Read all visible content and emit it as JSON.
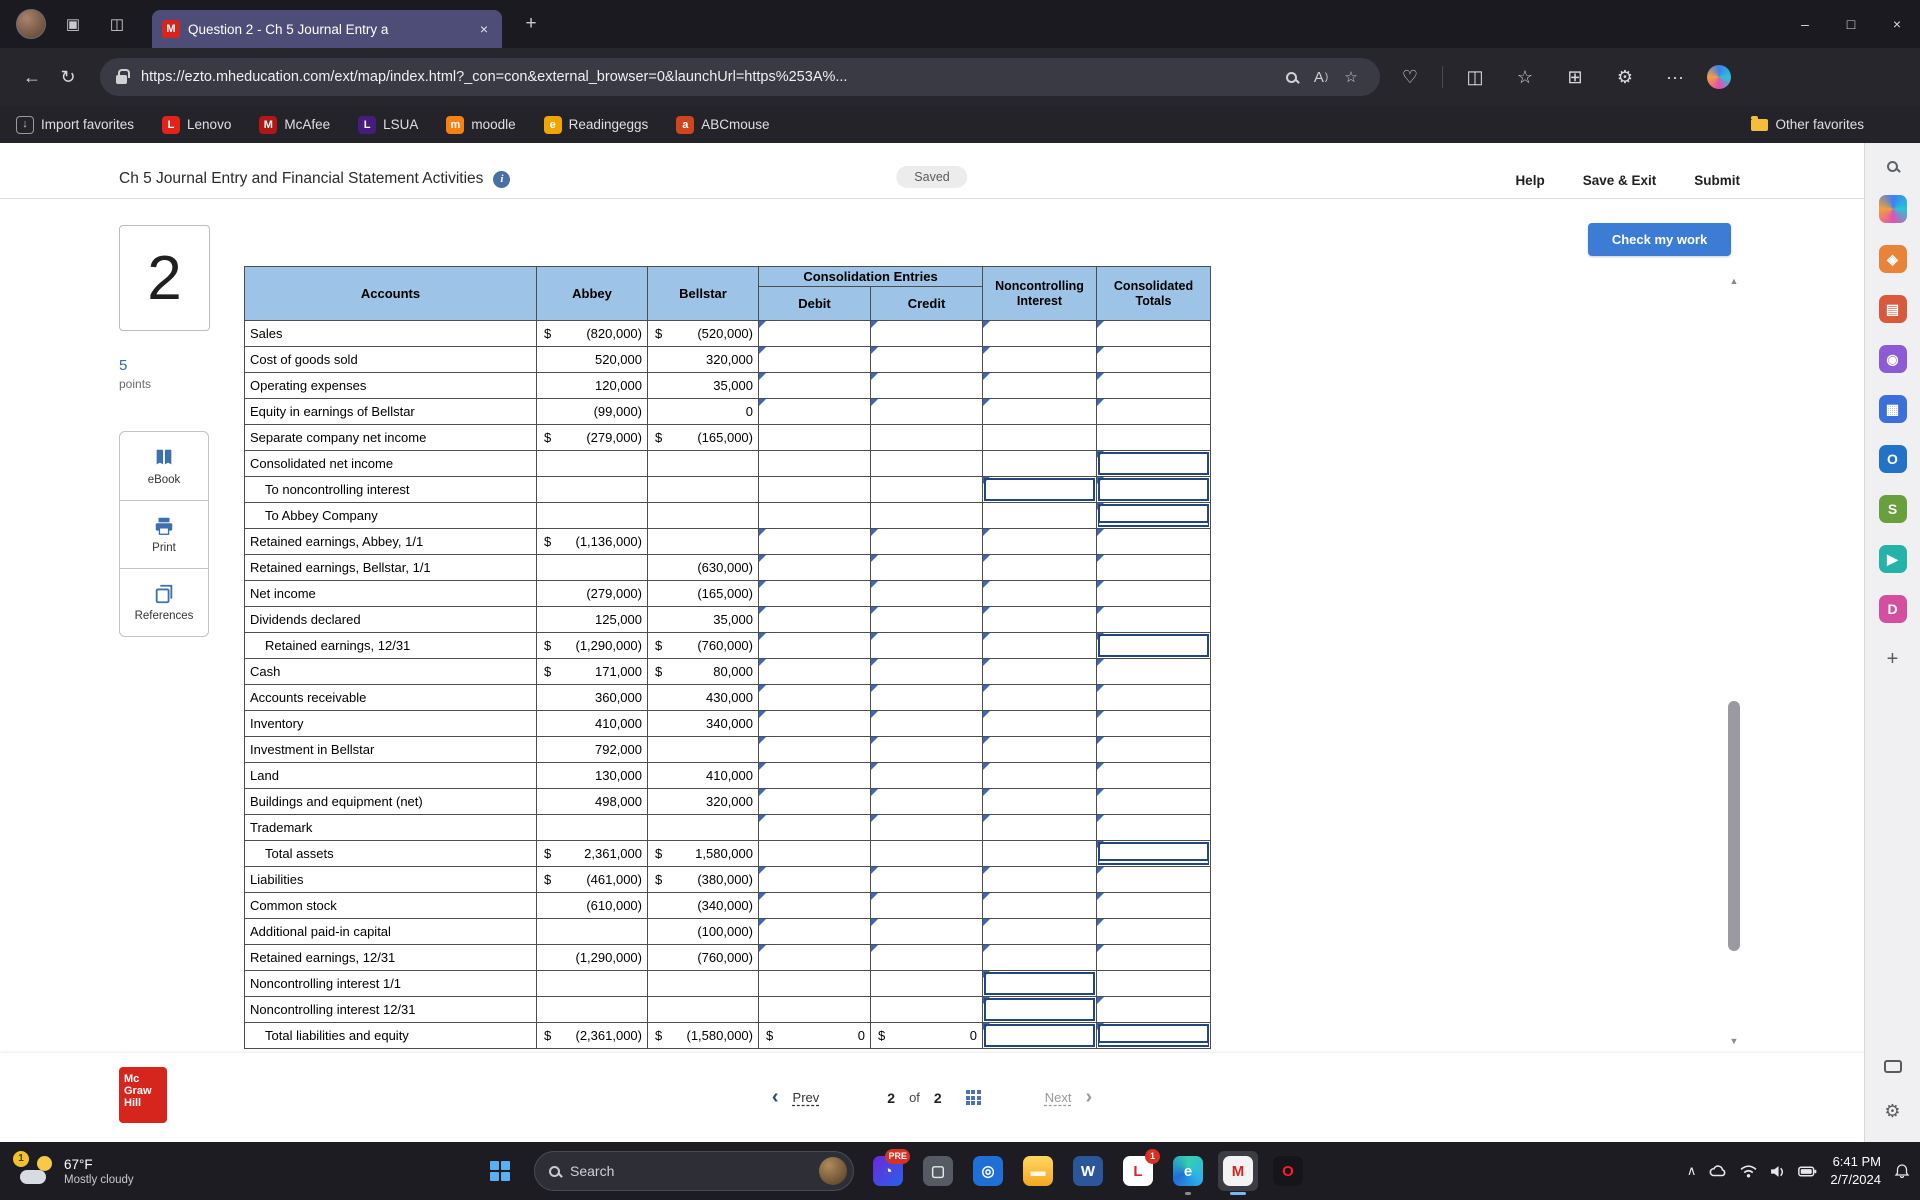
{
  "colors": {
    "accent_blue": "#3c7cd4",
    "table_header_blue": "#9dc3e6",
    "input_marker_blue": "#3f67b5",
    "boxed_cell_blue": "#24467e",
    "mcgraw_red": "#d6251c",
    "tab_purple": "#4d4d78",
    "chrome_dark": "#1a1a20",
    "chrome_mid": "#26262c",
    "taskbar_dark": "#1c1c22"
  },
  "icons": {
    "back": "←",
    "refresh": "↻",
    "more": "···",
    "star_url": "☆",
    "split": "◫",
    "favorites_star": "☆",
    "collections": "⊞",
    "essentials": "♡",
    "extensions": "⚙",
    "read_aloud": "A",
    "new_tab": "+",
    "minimize": "–",
    "maximize": "□",
    "close": "×",
    "tab_close": "×",
    "scroll_up": "▲",
    "scroll_down": "▼",
    "prev_chevron": "‹",
    "next_chevron": "›",
    "plus": "+",
    "gear": "⚙",
    "tray_chevron": "∧",
    "workspaces": "▣",
    "tab_actions": "◫"
  },
  "browser": {
    "tab_title": "Question 2 - Ch 5 Journal Entry a",
    "tab_favicon": "M",
    "url": "https://ezto.mheducation.com/ext/map/index.html?_con=con&external_browser=0&launchUrl=https%253A%...",
    "favorites": [
      {
        "id": "import-favorites",
        "label": "Import favorites",
        "letter": "↓",
        "color": "",
        "outline": true
      },
      {
        "id": "lenovo",
        "label": "Lenovo",
        "letter": "L",
        "color": "#e2231a"
      },
      {
        "id": "mcafee",
        "label": "McAfee",
        "letter": "M",
        "color": "#b01818"
      },
      {
        "id": "lsua",
        "label": "LSUA",
        "letter": "L",
        "color": "#461d7c"
      },
      {
        "id": "moodle",
        "label": "moodle",
        "letter": "m",
        "color": "#f98012"
      },
      {
        "id": "readingeggs",
        "label": "Readingeggs",
        "letter": "e",
        "color": "#f0a500"
      },
      {
        "id": "abcmouse",
        "label": "ABCmouse",
        "letter": "a",
        "color": "#cf4520"
      }
    ],
    "other_favorites": "Other favorites"
  },
  "header": {
    "title": "Ch 5 Journal Entry and Financial Statement Activities",
    "info": "i",
    "saved": "Saved",
    "help": "Help",
    "save_exit": "Save & Exit",
    "submit": "Submit"
  },
  "question": {
    "number": "2",
    "points_value": "5",
    "points_label": "points",
    "check_my_work": "Check my work",
    "tools": [
      {
        "label": "eBook",
        "icon": "book"
      },
      {
        "label": "Print",
        "icon": "printer"
      },
      {
        "label": "References",
        "icon": "copy"
      }
    ]
  },
  "worksheet": {
    "consolidation_entries": "Consolidation Entries",
    "headers": {
      "accounts": "Accounts",
      "abbey": "Abbey",
      "bellstar": "Bellstar",
      "debit": "Debit",
      "credit": "Credit",
      "noncontrolling": "Noncontrolling Interest",
      "consolidated": "Consolidated Totals"
    },
    "rows": [
      {
        "label": "Sales",
        "a_s": "$",
        "a_v": "(820,000)",
        "b_s": "$",
        "b_v": "(520,000)",
        "d": "i",
        "c": "i",
        "n": "i",
        "t": "i"
      },
      {
        "label": "Cost of goods sold",
        "a_v": "520,000",
        "b_v": "320,000",
        "d": "i",
        "c": "i",
        "n": "i",
        "t": "i"
      },
      {
        "label": "Operating expenses",
        "a_v": "120,000",
        "b_v": "35,000",
        "d": "i",
        "c": "i",
        "n": "i",
        "t": "i"
      },
      {
        "label": "Equity in earnings of Bellstar",
        "a_v": "(99,000)",
        "b_v": "0",
        "d": "i",
        "c": "i",
        "n": "i",
        "t": "i"
      },
      {
        "label": "Separate company net income",
        "a_s": "$",
        "a_v": "(279,000)",
        "b_s": "$",
        "b_v": "(165,000)"
      },
      {
        "label": "Consolidated net income",
        "t": "ib"
      },
      {
        "label": "To noncontrolling interest",
        "ind": 1,
        "n": "ib",
        "t": "ib"
      },
      {
        "label": "To Abbey Company",
        "ind": 1,
        "t": "ibd"
      },
      {
        "label": "Retained earnings, Abbey, 1/1",
        "a_s": "$",
        "a_v": "(1,136,000)",
        "d": "i",
        "c": "i",
        "n": "i",
        "t": "i"
      },
      {
        "label": "Retained earnings, Bellstar, 1/1",
        "b_v": "(630,000)",
        "d": "i",
        "c": "i",
        "n": "i",
        "t": "i"
      },
      {
        "label": "Net income",
        "a_v": "(279,000)",
        "b_v": "(165,000)",
        "d": "i",
        "c": "i",
        "n": "i",
        "t": "i"
      },
      {
        "label": "Dividends declared",
        "a_v": "125,000",
        "b_v": "35,000",
        "d": "i",
        "c": "i",
        "n": "i",
        "t": "i"
      },
      {
        "label": "Retained earnings, 12/31",
        "ind": 1,
        "a_s": "$",
        "a_v": "(1,290,000)",
        "b_s": "$",
        "b_v": "(760,000)",
        "d": "i",
        "c": "i",
        "n": "i",
        "t": "ib"
      },
      {
        "label": "Cash",
        "a_s": "$",
        "a_v": "171,000",
        "b_s": "$",
        "b_v": "80,000",
        "d": "i",
        "c": "i",
        "n": "i",
        "t": "i"
      },
      {
        "label": "Accounts receivable",
        "a_v": "360,000",
        "b_v": "430,000",
        "d": "i",
        "c": "i",
        "n": "i",
        "t": "i"
      },
      {
        "label": "Inventory",
        "a_v": "410,000",
        "b_v": "340,000",
        "d": "i",
        "c": "i",
        "n": "i",
        "t": "i"
      },
      {
        "label": "Investment in Bellstar",
        "a_v": "792,000",
        "d": "i",
        "c": "i",
        "n": "i",
        "t": "i"
      },
      {
        "label": "Land",
        "a_v": "130,000",
        "b_v": "410,000",
        "d": "i",
        "c": "i",
        "n": "i",
        "t": "i"
      },
      {
        "label": "Buildings and equipment (net)",
        "a_v": "498,000",
        "b_v": "320,000",
        "d": "i",
        "c": "i",
        "n": "i",
        "t": "i"
      },
      {
        "label": "Trademark",
        "d": "i",
        "c": "i",
        "n": "i",
        "t": "i"
      },
      {
        "label": "Total assets",
        "ind": 1,
        "a_s": "$",
        "a_v": "2,361,000",
        "b_s": "$",
        "b_v": "1,580,000",
        "t": "ibd"
      },
      {
        "label": "Liabilities",
        "a_s": "$",
        "a_v": "(461,000)",
        "b_s": "$",
        "b_v": "(380,000)",
        "d": "i",
        "c": "i",
        "n": "i",
        "t": "i"
      },
      {
        "label": "Common stock",
        "a_v": "(610,000)",
        "b_v": "(340,000)",
        "d": "i",
        "c": "i",
        "n": "i",
        "t": "i"
      },
      {
        "label": "Additional paid-in capital",
        "b_v": "(100,000)",
        "d": "i",
        "c": "i",
        "n": "i",
        "t": "i"
      },
      {
        "label": "Retained earnings, 12/31",
        "a_v": "(1,290,000)",
        "b_v": "(760,000)",
        "d": "i",
        "c": "i",
        "n": "i",
        "t": "i"
      },
      {
        "label": "Noncontrolling interest 1/1",
        "n": "ib"
      },
      {
        "label": "Noncontrolling interest 12/31",
        "n": "ib",
        "t": "i"
      },
      {
        "label": "Total liabilities and equity",
        "ind": 1,
        "a_s": "$",
        "a_v": "(2,361,000)",
        "b_s": "$",
        "b_v": "(1,580,000)",
        "d": {
          "s": "$",
          "v": "0"
        },
        "c": {
          "s": "$",
          "v": "0"
        },
        "n": "ib",
        "t": "ibd"
      }
    ]
  },
  "footer": {
    "logo_line1": "Mc",
    "logo_line2": "Graw",
    "logo_line3": "Hill",
    "prev": "Prev",
    "page": "2",
    "of": "of",
    "total": "2",
    "next": "Next"
  },
  "sidebar": {
    "icons": [
      {
        "name": "sidebar-copilot-icon",
        "bg": "conic-gradient(#3d7ff2,#29c4d8,#e24fb4,#f2a03d,#3d7ff2)",
        "glyph": ""
      },
      {
        "name": "sidebar-shopping-icon",
        "bg": "#e8833a",
        "glyph": "◈"
      },
      {
        "name": "sidebar-office-icon",
        "bg": "#d9593d",
        "glyph": "▤"
      },
      {
        "name": "sidebar-people-icon",
        "bg": "#8d5bd4",
        "glyph": "◉"
      },
      {
        "name": "sidebar-m365-icon",
        "bg": "#3d6fd9",
        "glyph": "▦"
      },
      {
        "name": "sidebar-outlook-icon",
        "bg": "#2472c8",
        "glyph": "O"
      },
      {
        "name": "sidebar-onenote-icon",
        "bg": "#6a9f3e",
        "glyph": "S"
      },
      {
        "name": "sidebar-drop-icon",
        "bg": "#25b2a8",
        "glyph": "▶"
      },
      {
        "name": "sidebar-designer-icon",
        "bg": "#d44fa0",
        "glyph": "D"
      }
    ]
  },
  "taskbar": {
    "weather_temp": "67°F",
    "weather_desc": "Mostly cloudy",
    "weather_badge": "1",
    "search": "Search",
    "apps": [
      {
        "name": "taskbar-app-preview-icon",
        "bg": "linear-gradient(135deg,#6d28d9,#2563eb)",
        "glyph": "◔",
        "fg": "#fff",
        "badge": "PRE",
        "badge_color": "#d93025"
      },
      {
        "name": "taskbar-widgets-icon",
        "bg": "#555a63",
        "glyph": "▢",
        "fg": "#e8e8e8"
      },
      {
        "name": "taskbar-camera-icon",
        "bg": "#1f6fd6",
        "glyph": "◎",
        "fg": "#fff"
      },
      {
        "name": "taskbar-file-explorer-icon",
        "bg": "linear-gradient(180deg,#ffd75e,#f5a623)",
        "glyph": "▬",
        "fg": "#fff8e0"
      },
      {
        "name": "taskbar-word-icon",
        "bg": "#2b579a",
        "glyph": "W",
        "fg": "#fff"
      },
      {
        "name": "taskbar-lenovo-icon",
        "bg": "#ffffff",
        "glyph": "L",
        "fg": "#d22630",
        "badge": "1",
        "badge_color": "#d93025"
      },
      {
        "name": "taskbar-edge-icon",
        "bg": "conic-gradient(#35d0b0,#2bb3e8,#1f6fd6,#35d0b0)",
        "glyph": "e",
        "fg": "#fff",
        "open": true
      },
      {
        "name": "taskbar-mcgraw-hill-icon",
        "bg": "#f3f3f3",
        "glyph": "M",
        "fg": "#d6251c",
        "active": true
      },
      {
        "name": "taskbar-opera-icon",
        "bg": "#15151a",
        "glyph": "O",
        "fg": "#ff1b2d"
      }
    ],
    "time": "6:41 PM",
    "date": "2/7/2024"
  }
}
